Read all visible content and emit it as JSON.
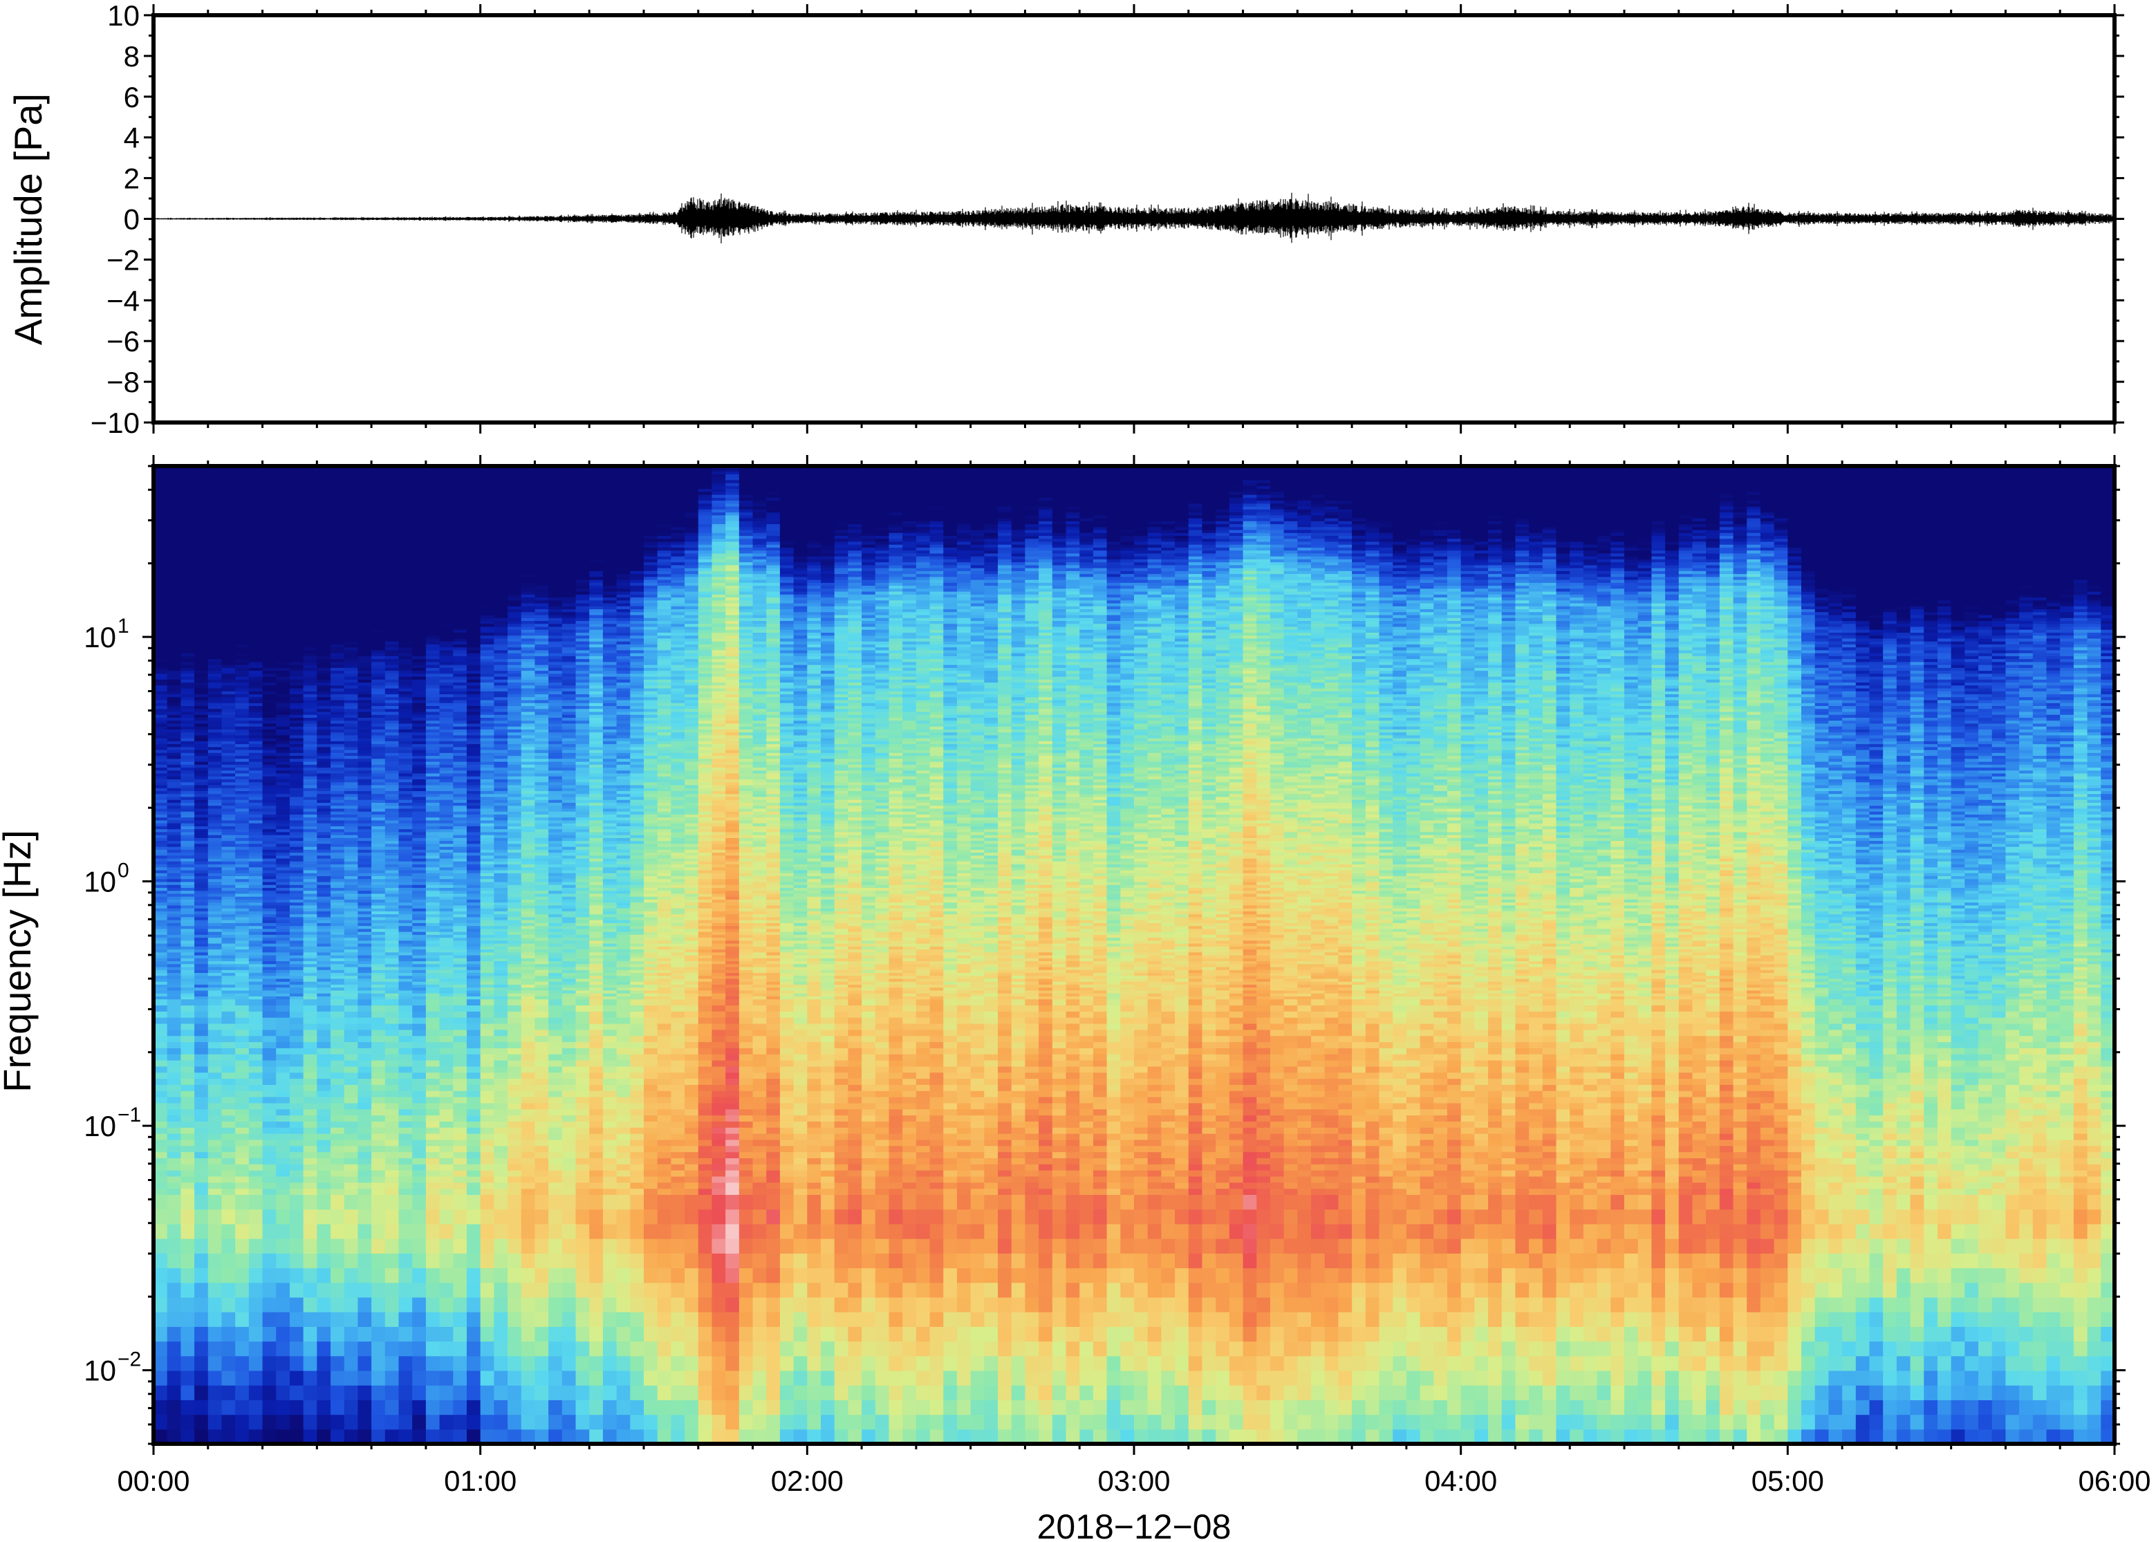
{
  "chart_data": [
    {
      "type": "line",
      "panel": "waveform",
      "ylabel": "Amplitude [Pa]",
      "ylim": [
        -10,
        10
      ],
      "yticks": [
        {
          "value": 10,
          "label": "10"
        },
        {
          "value": 8,
          "label": "8"
        },
        {
          "value": 6,
          "label": "6"
        },
        {
          "value": 4,
          "label": "4"
        },
        {
          "value": 2,
          "label": "2"
        },
        {
          "value": 0,
          "label": "0"
        },
        {
          "value": -2,
          "label": "−2"
        },
        {
          "value": -4,
          "label": "−4"
        },
        {
          "value": -6,
          "label": "−6"
        },
        {
          "value": -8,
          "label": "−8"
        },
        {
          "value": -10,
          "label": "−10"
        }
      ],
      "xlim": [
        "00:00",
        "06:00"
      ],
      "envelope": {
        "time_h": [
          0.0,
          0.5,
          1.0,
          1.25,
          1.5,
          1.6,
          1.65,
          1.7,
          1.75,
          1.8,
          1.9,
          2.0,
          2.2,
          2.5,
          2.7,
          2.8,
          3.0,
          3.2,
          3.4,
          3.5,
          3.6,
          3.8,
          4.0,
          4.15,
          4.3,
          4.6,
          4.8,
          4.85,
          5.0,
          5.3,
          5.65,
          5.7,
          6.0
        ],
        "peak_pa": [
          0.05,
          0.08,
          0.12,
          0.2,
          0.3,
          0.45,
          1.4,
          1.1,
          1.3,
          1.1,
          0.45,
          0.3,
          0.4,
          0.5,
          0.8,
          0.9,
          0.7,
          0.7,
          1.2,
          1.3,
          1.1,
          0.6,
          0.5,
          0.8,
          0.5,
          0.4,
          0.5,
          0.9,
          0.4,
          0.35,
          0.4,
          0.6,
          0.3
        ]
      }
    },
    {
      "type": "heatmap",
      "panel": "spectrogram",
      "ylabel": "Frequency [Hz]",
      "yscale": "log",
      "ylim": [
        0.005,
        50
      ],
      "yticks": [
        {
          "value": 10,
          "base": "10",
          "exp": "1"
        },
        {
          "value": 1,
          "base": "10",
          "exp": "0"
        },
        {
          "value": 0.1,
          "base": "10",
          "exp": "−1"
        },
        {
          "value": 0.01,
          "base": "10",
          "exp": "−2"
        }
      ],
      "xlabel": "2018−12−08",
      "xlim": [
        "00:00",
        "06:00"
      ],
      "xticks": [
        "00:00",
        "01:00",
        "02:00",
        "03:00",
        "04:00",
        "05:00",
        "06:00"
      ],
      "colormap": [
        "#0b0a74",
        "#0a1fb0",
        "#1e55e0",
        "#3aa0f0",
        "#5ad9ee",
        "#8ce8b0",
        "#d8ee8a",
        "#f7d070",
        "#f9a850",
        "#f27a4a",
        "#ec4f55",
        "#f8c8c8"
      ],
      "energy_profile": {
        "time_h": [
          0.0,
          0.5,
          1.0,
          1.1,
          1.4,
          1.6,
          1.75,
          1.9,
          2.0,
          2.2,
          2.5,
          2.75,
          3.0,
          3.25,
          3.4,
          3.6,
          3.9,
          4.2,
          4.5,
          4.8,
          4.9,
          5.1,
          5.3,
          5.6,
          6.0
        ],
        "relative_level": [
          0.2,
          0.22,
          0.3,
          0.45,
          0.55,
          0.75,
          1.0,
          0.8,
          0.6,
          0.75,
          0.75,
          0.8,
          0.7,
          0.8,
          0.95,
          0.85,
          0.7,
          0.75,
          0.65,
          0.8,
          0.85,
          0.55,
          0.4,
          0.45,
          0.5
        ]
      }
    }
  ]
}
